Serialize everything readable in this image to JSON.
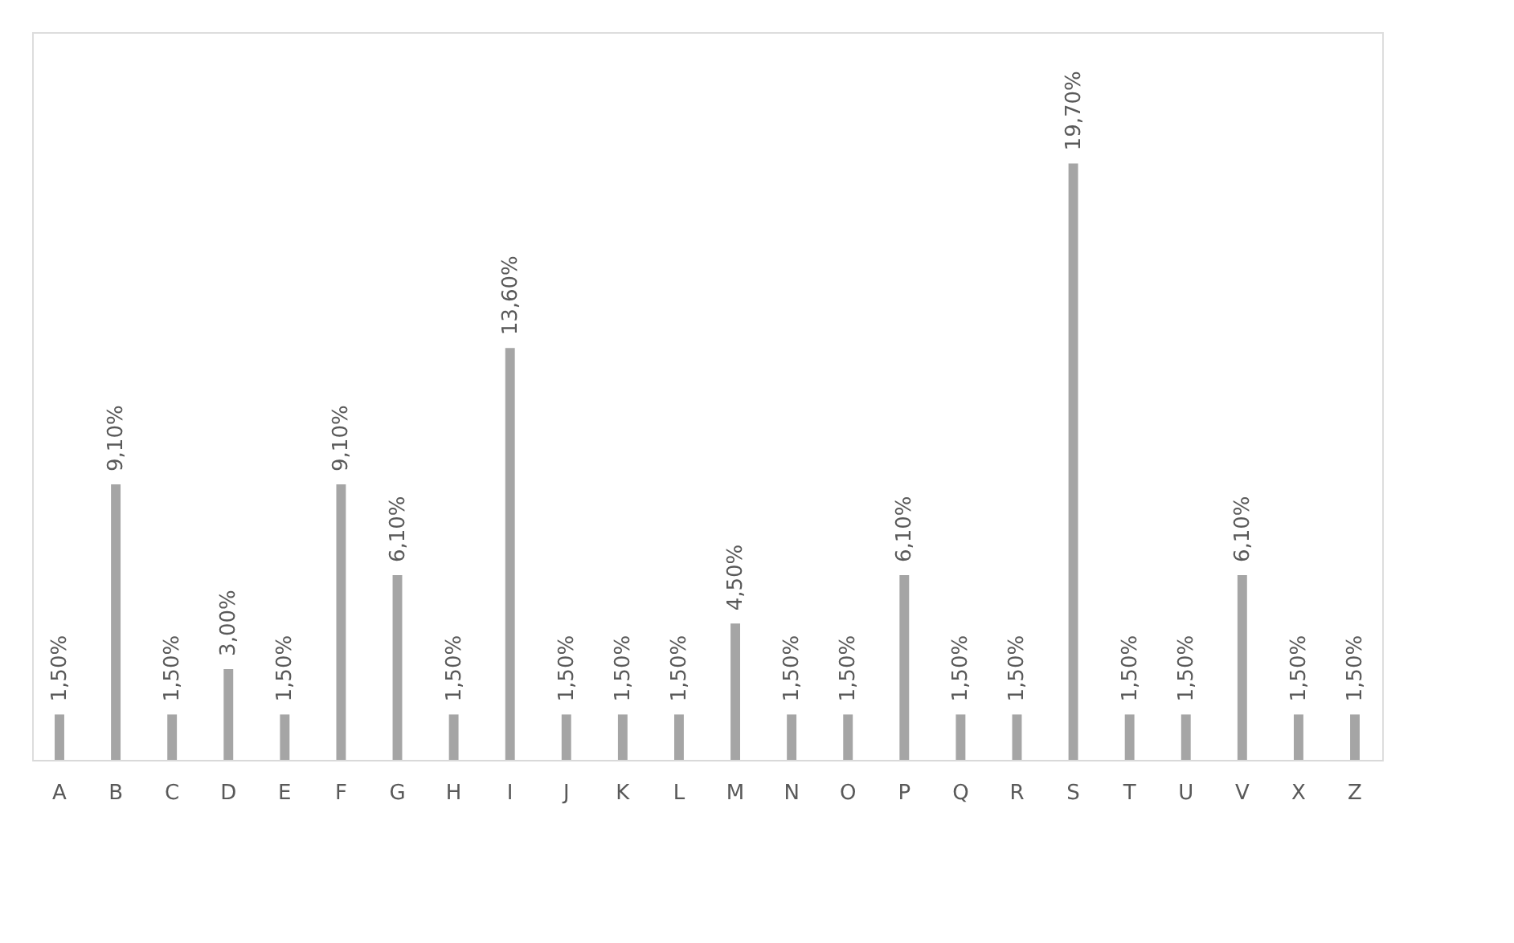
{
  "chart_data": {
    "type": "bar",
    "categories": [
      "A",
      "B",
      "C",
      "D",
      "E",
      "F",
      "G",
      "H",
      "I",
      "J",
      "K",
      "L",
      "M",
      "N",
      "O",
      "P",
      "Q",
      "R",
      "S",
      "T",
      "U",
      "V",
      "X",
      "Z"
    ],
    "values": [
      1.5,
      9.1,
      1.5,
      3.0,
      1.5,
      9.1,
      6.1,
      1.5,
      13.6,
      1.5,
      1.5,
      1.5,
      4.5,
      1.5,
      1.5,
      6.1,
      1.5,
      1.5,
      19.7,
      1.5,
      1.5,
      6.1,
      1.5,
      1.5
    ],
    "value_labels": [
      "1,50%",
      "9,10%",
      "1,50%",
      "3,00%",
      "1,50%",
      "9,10%",
      "6,10%",
      "1,50%",
      "13,60%",
      "1,50%",
      "1,50%",
      "1,50%",
      "4,50%",
      "1,50%",
      "1,50%",
      "6,10%",
      "1,50%",
      "1,50%",
      "19,70%",
      "1,50%",
      "1,50%",
      "6,10%",
      "1,50%",
      "1,50%"
    ],
    "color": "#a5a5a5",
    "tick_labels": "x"
  }
}
